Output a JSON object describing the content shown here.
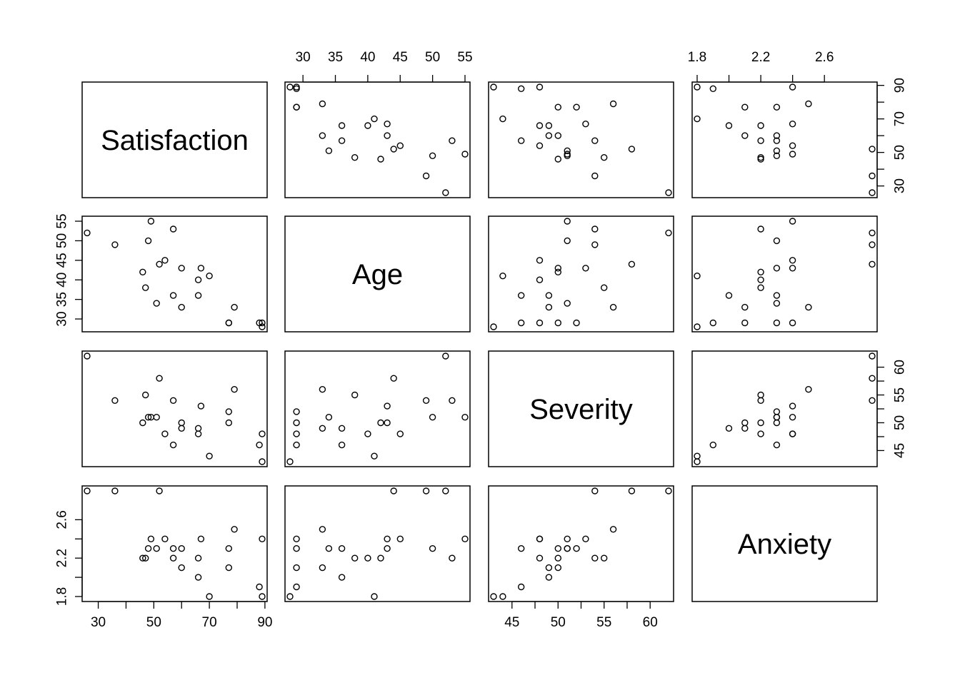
{
  "chart_data": {
    "type": "scatter",
    "layout": "scatterplot-matrix",
    "variables": [
      {
        "name": "Satisfaction",
        "range": [
          26,
          89
        ],
        "ticks": [
          30,
          50,
          70,
          90
        ],
        "tick_labels": [
          "30",
          "50",
          "70",
          "90"
        ]
      },
      {
        "name": "Age",
        "range": [
          28,
          55
        ],
        "ticks": [
          30,
          35,
          40,
          45,
          50,
          55
        ],
        "tick_labels": [
          "30",
          "35",
          "40",
          "45",
          "50",
          "55"
        ]
      },
      {
        "name": "Severity",
        "range": [
          43,
          62
        ],
        "ticks": [
          45,
          50,
          55,
          60
        ],
        "tick_labels": [
          "45",
          "50",
          "55",
          "60"
        ]
      },
      {
        "name": "Anxiety",
        "range": [
          1.8,
          2.9
        ],
        "ticks": [
          1.8,
          2.2,
          2.6
        ],
        "tick_labels": [
          "1.8",
          "2.2",
          "2.6"
        ]
      }
    ],
    "observations": [
      {
        "Satisfaction": 48,
        "Age": 50,
        "Severity": 51,
        "Anxiety": 2.3
      },
      {
        "Satisfaction": 57,
        "Age": 36,
        "Severity": 46,
        "Anxiety": 2.3
      },
      {
        "Satisfaction": 66,
        "Age": 40,
        "Severity": 48,
        "Anxiety": 2.2
      },
      {
        "Satisfaction": 70,
        "Age": 41,
        "Severity": 44,
        "Anxiety": 1.8
      },
      {
        "Satisfaction": 89,
        "Age": 28,
        "Severity": 43,
        "Anxiety": 1.8
      },
      {
        "Satisfaction": 36,
        "Age": 49,
        "Severity": 54,
        "Anxiety": 2.9
      },
      {
        "Satisfaction": 46,
        "Age": 42,
        "Severity": 50,
        "Anxiety": 2.2
      },
      {
        "Satisfaction": 54,
        "Age": 45,
        "Severity": 48,
        "Anxiety": 2.4
      },
      {
        "Satisfaction": 26,
        "Age": 52,
        "Severity": 62,
        "Anxiety": 2.9
      },
      {
        "Satisfaction": 77,
        "Age": 29,
        "Severity": 50,
        "Anxiety": 2.1
      },
      {
        "Satisfaction": 89,
        "Age": 29,
        "Severity": 48,
        "Anxiety": 2.4
      },
      {
        "Satisfaction": 67,
        "Age": 43,
        "Severity": 53,
        "Anxiety": 2.4
      },
      {
        "Satisfaction": 47,
        "Age": 38,
        "Severity": 55,
        "Anxiety": 2.2
      },
      {
        "Satisfaction": 51,
        "Age": 34,
        "Severity": 51,
        "Anxiety": 2.3
      },
      {
        "Satisfaction": 57,
        "Age": 53,
        "Severity": 54,
        "Anxiety": 2.2
      },
      {
        "Satisfaction": 66,
        "Age": 36,
        "Severity": 49,
        "Anxiety": 2.0
      },
      {
        "Satisfaction": 79,
        "Age": 33,
        "Severity": 56,
        "Anxiety": 2.5
      },
      {
        "Satisfaction": 88,
        "Age": 29,
        "Severity": 46,
        "Anxiety": 1.9
      },
      {
        "Satisfaction": 60,
        "Age": 33,
        "Severity": 49,
        "Anxiety": 2.1
      },
      {
        "Satisfaction": 49,
        "Age": 55,
        "Severity": 51,
        "Anxiety": 2.4
      },
      {
        "Satisfaction": 77,
        "Age": 29,
        "Severity": 52,
        "Anxiety": 2.3
      },
      {
        "Satisfaction": 52,
        "Age": 44,
        "Severity": 58,
        "Anxiety": 2.9
      },
      {
        "Satisfaction": 60,
        "Age": 43,
        "Severity": 50,
        "Anxiety": 2.3
      }
    ],
    "title": "",
    "grid": false,
    "legend": "none"
  }
}
